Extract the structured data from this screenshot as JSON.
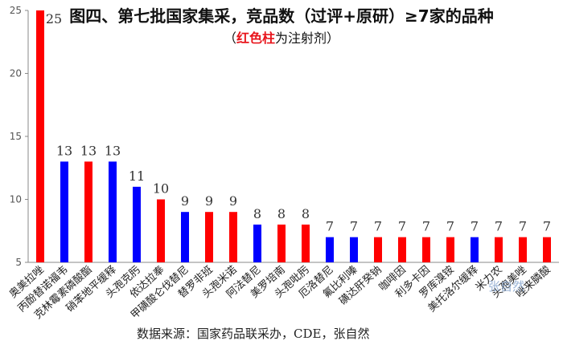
{
  "title": "图四、第七批国家集采，竞品数（过评+原研）≥7家的品种",
  "subtitle_open": "（",
  "subtitle_highlight": "红色柱",
  "subtitle_rest": "为注射剂）",
  "source": "数据来源：国家药品联采办，CDE，张自然",
  "watermark": "张自然",
  "colors": {
    "injection": "#ff0000",
    "oral": "#0000ff",
    "axis": "#888888",
    "grid": "#d9d9d9",
    "text": "#333333"
  },
  "chart_data": {
    "type": "bar",
    "title": "图四、第七批国家集采，竞品数（过评+原研）≥7家的品种",
    "xlabel": "",
    "ylabel": "",
    "ylim": [
      5,
      25
    ],
    "yticks": [
      5,
      10,
      15,
      20,
      25
    ],
    "grid": false,
    "categories": [
      "奥美拉唑",
      "丙酚替诺福韦",
      "克林霉素磷酸酯",
      "硝苯地平缓释",
      "头孢克肟",
      "依达拉奉",
      "甲磺酸仑伐替尼",
      "替罗非班",
      "头孢米诺",
      "阿法替尼",
      "美罗培南",
      "头孢吡肟",
      "厄洛替尼",
      "氟比利嗪",
      "磺达肝癸钠",
      "咖啡因",
      "利多卡因",
      "罗库溴铵",
      "美托洛尔缓释",
      "米力农",
      "头孢美唑",
      "唑来膦酸"
    ],
    "values": [
      25,
      13,
      13,
      13,
      11,
      10,
      9,
      9,
      9,
      8,
      8,
      8,
      7,
      7,
      7,
      7,
      7,
      7,
      7,
      7,
      7,
      7
    ],
    "value_labels": [
      "25",
      "13",
      "13",
      "13",
      "11",
      "10",
      "9",
      "9",
      "9",
      "8",
      "8",
      "8",
      "7",
      "7",
      "7",
      "7",
      "7",
      "7",
      "7",
      "7",
      "7",
      "7"
    ],
    "kinds": [
      "injection",
      "oral",
      "injection",
      "oral",
      "oral",
      "injection",
      "oral",
      "injection",
      "injection",
      "oral",
      "injection",
      "injection",
      "oral",
      "oral",
      "injection",
      "injection",
      "injection",
      "injection",
      "oral",
      "injection",
      "injection",
      "injection"
    ]
  }
}
